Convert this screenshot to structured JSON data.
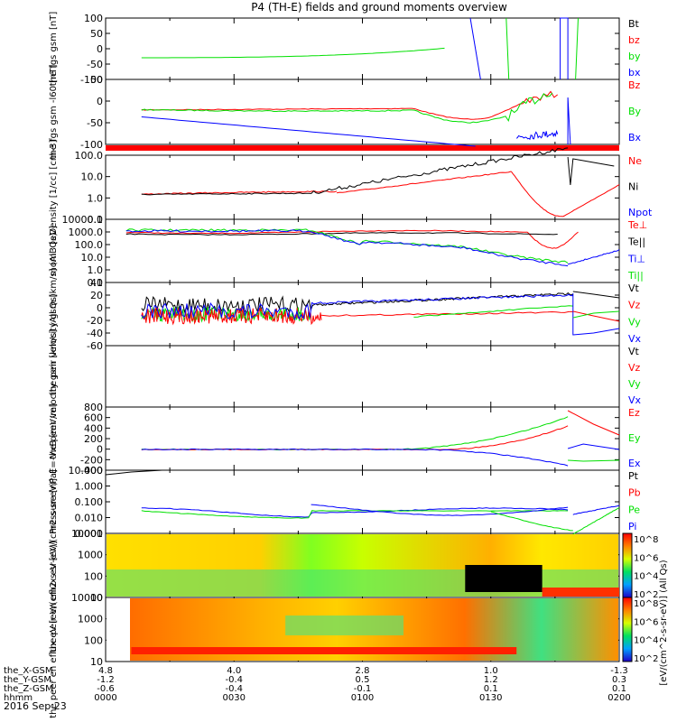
{
  "title": "P4 (TH-E) fields and ground moments overview",
  "date_label": "2016 Sep 23",
  "colors": {
    "black": "#000000",
    "red": "#ff0000",
    "green": "#00e000",
    "blue": "#0000ff"
  },
  "xaxis": {
    "rows": [
      {
        "label": "the_X-GSM",
        "values": [
          "4.8",
          "4.0",
          "2.8",
          "1.0",
          "-1.3"
        ]
      },
      {
        "label": "the_Y-GSM",
        "values": [
          "-1.2",
          "-0.4",
          "0.5",
          "1.2",
          "0.3"
        ]
      },
      {
        "label": "the_Z-GSM",
        "values": [
          "-0.6",
          "-0.4",
          "-0.1",
          "0.1",
          "0.1"
        ]
      },
      {
        "label": "hhmm",
        "values": [
          "0000",
          "0030",
          "0100",
          "0130",
          "0200"
        ]
      }
    ]
  },
  "chart_data": [
    {
      "type": "line",
      "ylabel": "the fgs gsm [nT]",
      "ylim": [
        -100,
        100
      ],
      "yticks": [
        "100",
        "50",
        "0",
        "-50",
        "-100"
      ],
      "legend": [
        {
          "name": "Bt",
          "color": "black"
        },
        {
          "name": "bz",
          "color": "red"
        },
        {
          "name": "by",
          "color": "green"
        },
        {
          "name": "bx",
          "color": "blue"
        }
      ]
    },
    {
      "type": "line",
      "ylabel": "the fgs gsm -l60 [nT]",
      "ylim": [
        -125,
        50
      ],
      "yticks": [
        "50",
        "0",
        "-50",
        "-100"
      ],
      "legend": [
        {
          "name": "Bz",
          "color": "red"
        },
        {
          "name": "By",
          "color": "green"
        },
        {
          "name": "Bx",
          "color": "blue"
        }
      ]
    },
    {
      "type": "line",
      "scale": "log",
      "ylabel": "Density [1/cc] [cm-3]",
      "yticks": [
        "100.0",
        "10.0",
        "1.0",
        "0.1"
      ],
      "legend": [
        {
          "name": "Ne",
          "color": "red"
        },
        {
          "name": "Ni",
          "color": "black"
        },
        {
          "name": "Npot",
          "color": "blue"
        }
      ]
    },
    {
      "type": "line",
      "scale": "log",
      "ylabel": "mom3 [eV]",
      "yticks": [
        "10000.0",
        "1000.0",
        "100.0",
        "10.0",
        "1.0",
        "0.1"
      ],
      "legend": [
        {
          "name": "Te⊥",
          "color": "red"
        },
        {
          "name": "Te||",
          "color": "black"
        },
        {
          "name": "Ti⊥",
          "color": "blue"
        },
        {
          "name": "Ti||",
          "color": "green"
        }
      ]
    },
    {
      "type": "line",
      "ylabel": "the peir velocity gsm [km/s] (All Qs)",
      "ylim": [
        -60,
        40
      ],
      "yticks": [
        "40",
        "20",
        "0",
        "-20",
        "-40",
        "-60"
      ],
      "legend": [
        {
          "name": "Vt",
          "color": "black"
        },
        {
          "name": "Vz",
          "color": "red"
        },
        {
          "name": "Vy",
          "color": "green"
        },
        {
          "name": "Vx",
          "color": "blue"
        }
      ]
    },
    {
      "type": "line",
      "ylabel": "the peer velocity gsm [km/s] (All Qs)",
      "legend": [
        {
          "name": "Vt",
          "color": "black"
        },
        {
          "name": "Vz",
          "color": "red"
        },
        {
          "name": "Vy",
          "color": "green"
        },
        {
          "name": "Vx",
          "color": "blue"
        }
      ]
    },
    {
      "type": "line",
      "ylabel": "E=-VxB [mV/m]",
      "ylim": [
        -400,
        800
      ],
      "yticks": [
        "800",
        "600",
        "400",
        "200",
        "0",
        "-200",
        "-400"
      ],
      "legend": [
        {
          "name": "Ez",
          "color": "red"
        },
        {
          "name": "Ey",
          "color": "green"
        },
        {
          "name": "Ex",
          "color": "blue"
        }
      ]
    },
    {
      "type": "line",
      "scale": "log",
      "ylabel": "Pressure [nPa]",
      "yticks": [
        "10.000",
        "1.000",
        "0.100",
        "0.010",
        "0.001"
      ],
      "legend": [
        {
          "name": "Pt",
          "color": "black"
        },
        {
          "name": "Pb",
          "color": "red"
        },
        {
          "name": "Pe",
          "color": "green"
        },
        {
          "name": "Pi",
          "color": "blue"
        }
      ]
    },
    {
      "type": "heatmap",
      "ylabel": "the peir en eflux eV [eV/(cm2-s-sr-eV)]",
      "yticks": [
        "10000",
        "1000",
        "100",
        "10"
      ],
      "colorbar": {
        "label": "[eV/(cm^2-s-sr-eV)] (All Qs)",
        "ticks": [
          "10^8",
          "10^6",
          "10^4",
          "10^2"
        ]
      }
    },
    {
      "type": "heatmap",
      "ylabel": "the peer en eflux eV [eV/(cm2-s-sr-eV)]",
      "yticks": [
        "10000",
        "1000",
        "100",
        "10"
      ],
      "colorbar": {
        "label": "[eV/(cm^2-s-sr-eV)] (All Qs)",
        "ticks": [
          "10^8",
          "10^6",
          "10^4",
          "10^2"
        ]
      }
    }
  ]
}
